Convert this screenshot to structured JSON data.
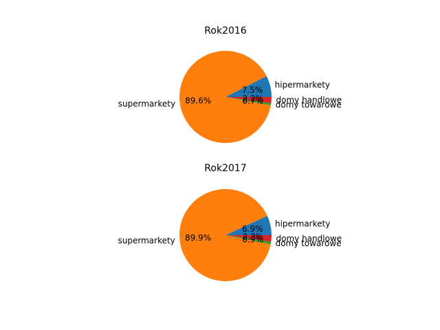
{
  "chart_data": [
    {
      "type": "pie",
      "title": "Rok2016",
      "slices": [
        {
          "label": "hipermarkety",
          "pct_label": "7.5%",
          "value": 7.5,
          "color": "#1f77b4"
        },
        {
          "label": "supermarkety",
          "pct_label": "89.6%",
          "value": 89.6,
          "color": "#ff7f0e"
        },
        {
          "label": "domy towarowe",
          "pct_label": "0.7%",
          "value": 0.7,
          "color": "#2ca02c"
        },
        {
          "label": "domy handlowe",
          "pct_label": "2.2%",
          "value": 2.2,
          "color": "#d62728"
        }
      ]
    },
    {
      "type": "pie",
      "title": "Rok2017",
      "slices": [
        {
          "label": "hipermarkety",
          "pct_label": "6.9%",
          "value": 6.9,
          "color": "#1f77b4"
        },
        {
          "label": "supermarkety",
          "pct_label": "89.9%",
          "value": 89.9,
          "color": "#ff7f0e"
        },
        {
          "label": "domy towarowe",
          "pct_label": "0.9%",
          "value": 0.9,
          "color": "#2ca02c"
        },
        {
          "label": "domy handlowe",
          "pct_label": "2.3%",
          "value": 2.3,
          "color": "#d62728"
        }
      ]
    }
  ]
}
